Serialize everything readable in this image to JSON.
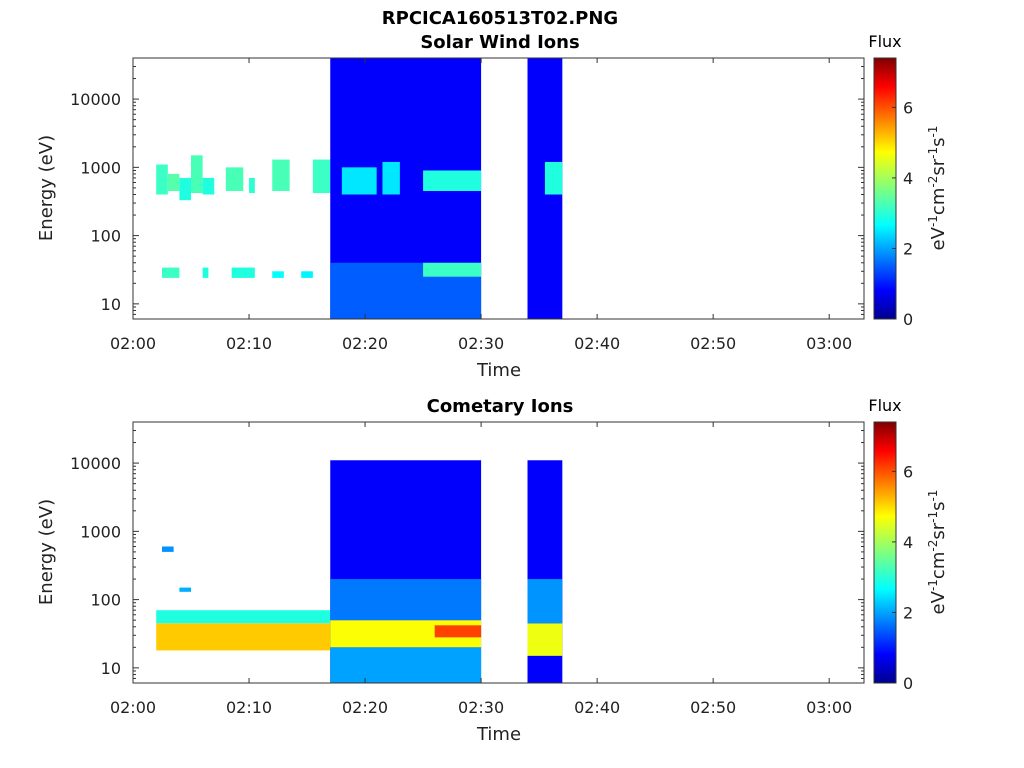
{
  "figure": {
    "title": "RPCICA160513T02.PNG"
  },
  "colorbar": {
    "title": "Flux",
    "ticks": [
      "0",
      "2",
      "4",
      "6"
    ],
    "range": [
      0,
      7.4
    ],
    "unit_parts": [
      "eV",
      "-1",
      "cm",
      "-2",
      "sr",
      "-1",
      "s",
      "-1"
    ],
    "colormap": "jet"
  },
  "chart_data": [
    {
      "type": "heatmap",
      "title": "Solar Wind Ions",
      "xlabel": "Time",
      "ylabel": "Energy (eV)",
      "x_ticks": [
        "02:00",
        "02:10",
        "02:20",
        "02:30",
        "02:40",
        "02:50",
        "03:00"
      ],
      "x_range_min": [
        0,
        63
      ],
      "y_ticks": [
        "10",
        "100",
        "1000",
        "10000"
      ],
      "y_range_eV": [
        6,
        40000
      ],
      "y_scale": "log",
      "z_range": [
        0,
        7.4
      ],
      "segments": [
        {
          "t": [
            2,
            3
          ],
          "e": [
            400,
            1100
          ],
          "z": 3.2
        },
        {
          "t": [
            3,
            4
          ],
          "e": [
            450,
            800
          ],
          "z": 3.4
        },
        {
          "t": [
            4,
            5
          ],
          "e": [
            330,
            700
          ],
          "z": 3.0
        },
        {
          "t": [
            5,
            6
          ],
          "e": [
            420,
            1500
          ],
          "z": 3.3
        },
        {
          "t": [
            6,
            7
          ],
          "e": [
            400,
            700
          ],
          "z": 3.0
        },
        {
          "t": [
            8,
            9.5
          ],
          "e": [
            450,
            1000
          ],
          "z": 3.3
        },
        {
          "t": [
            10,
            10.5
          ],
          "e": [
            420,
            700
          ],
          "z": 3.1
        },
        {
          "t": [
            12,
            13.5
          ],
          "e": [
            450,
            1300
          ],
          "z": 3.3
        },
        {
          "t": [
            15.5,
            17
          ],
          "e": [
            420,
            1300
          ],
          "z": 3.2
        },
        {
          "t": [
            2.5,
            4
          ],
          "e": [
            24,
            34
          ],
          "z": 3.2
        },
        {
          "t": [
            6,
            6.5
          ],
          "e": [
            24,
            34
          ],
          "z": 3.0
        },
        {
          "t": [
            8.5,
            10.5
          ],
          "e": [
            24,
            34
          ],
          "z": 3.0
        },
        {
          "t": [
            12,
            13
          ],
          "e": [
            24,
            30
          ],
          "z": 2.8
        },
        {
          "t": [
            14.5,
            15.5
          ],
          "e": [
            24,
            30
          ],
          "z": 2.7
        },
        {
          "t": [
            17,
            30
          ],
          "e": [
            6,
            40000
          ],
          "z": 0.9
        },
        {
          "t": [
            17,
            30
          ],
          "e": [
            6,
            40
          ],
          "z": 1.6
        },
        {
          "t": [
            18,
            21
          ],
          "e": [
            400,
            1000
          ],
          "z": 2.6
        },
        {
          "t": [
            21.5,
            23
          ],
          "e": [
            400,
            1200
          ],
          "z": 2.6
        },
        {
          "t": [
            25,
            30
          ],
          "e": [
            450,
            900
          ],
          "z": 3.0
        },
        {
          "t": [
            25,
            30
          ],
          "e": [
            25,
            40
          ],
          "z": 3.2
        },
        {
          "t": [
            34,
            37
          ],
          "e": [
            6,
            40000
          ],
          "z": 0.9
        },
        {
          "t": [
            35.5,
            37
          ],
          "e": [
            400,
            1200
          ],
          "z": 3.0
        }
      ]
    },
    {
      "type": "heatmap",
      "title": "Cometary Ions",
      "xlabel": "Time",
      "ylabel": "Energy (eV)",
      "x_ticks": [
        "02:00",
        "02:10",
        "02:20",
        "02:30",
        "02:40",
        "02:50",
        "03:00"
      ],
      "x_range_min": [
        0,
        63
      ],
      "y_ticks": [
        "10",
        "100",
        "1000",
        "10000"
      ],
      "y_range_eV": [
        6,
        40000
      ],
      "y_scale": "log",
      "z_range": [
        0,
        7.4
      ],
      "segments": [
        {
          "t": [
            2,
            17
          ],
          "e": [
            18,
            45
          ],
          "z": 5.0
        },
        {
          "t": [
            2,
            17
          ],
          "e": [
            45,
            70
          ],
          "z": 3.0
        },
        {
          "t": [
            2.5,
            3.5
          ],
          "e": [
            500,
            600
          ],
          "z": 2.0
        },
        {
          "t": [
            4,
            5
          ],
          "e": [
            130,
            150
          ],
          "z": 2.2
        },
        {
          "t": [
            17,
            30
          ],
          "e": [
            6,
            11000
          ],
          "z": 0.9
        },
        {
          "t": [
            17,
            30
          ],
          "e": [
            6,
            20
          ],
          "z": 2.1
        },
        {
          "t": [
            17,
            30
          ],
          "e": [
            20,
            50
          ],
          "z": 4.6
        },
        {
          "t": [
            17,
            30
          ],
          "e": [
            50,
            200
          ],
          "z": 1.8
        },
        {
          "t": [
            26,
            30
          ],
          "e": [
            28,
            42
          ],
          "z": 6.0
        },
        {
          "t": [
            34,
            37
          ],
          "e": [
            6,
            11000
          ],
          "z": 0.9
        },
        {
          "t": [
            34,
            37
          ],
          "e": [
            15,
            45
          ],
          "z": 4.5
        },
        {
          "t": [
            34,
            37
          ],
          "e": [
            45,
            200
          ],
          "z": 2.0
        }
      ]
    }
  ]
}
